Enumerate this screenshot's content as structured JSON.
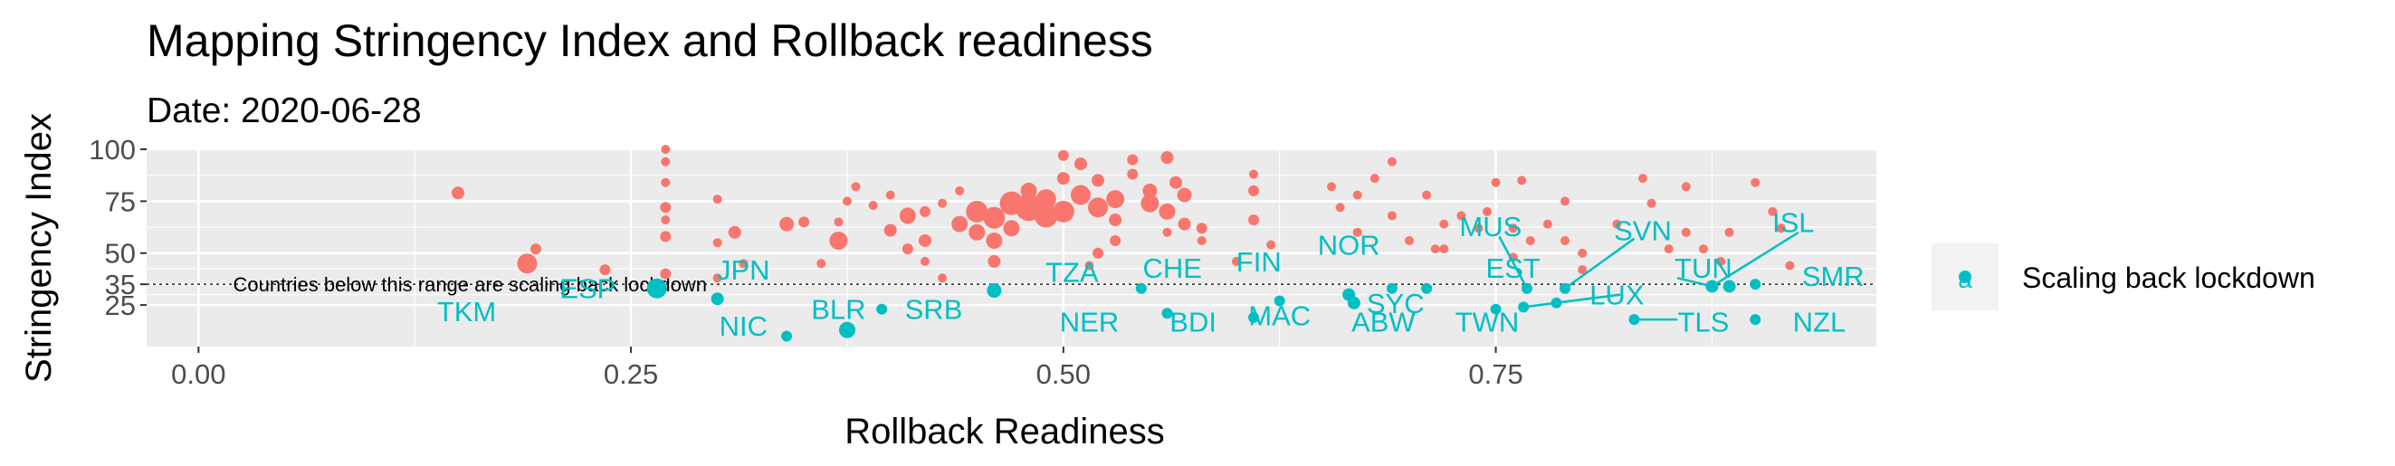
{
  "chart_data": {
    "type": "scatter",
    "title": "Mapping Stringency Index and Rollback readiness",
    "subtitle": "Date: 2020-06-28",
    "xlabel": "Rollback Readiness",
    "ylabel": "Stringency Index",
    "xlim": [
      -0.03,
      0.97
    ],
    "ylim": [
      5,
      100
    ],
    "x_ticks": [
      "0.00",
      "0.25",
      "0.50",
      "0.75"
    ],
    "y_ticks": [
      "25",
      "35",
      "50",
      "75",
      "100"
    ],
    "threshold": {
      "y": 35,
      "label": "Countries below this range are scaling back lockdown"
    },
    "grid": true,
    "legend_position": "right",
    "colors": {
      "above": "#F8766D",
      "below": "#00BFC4",
      "panel": "#EBEBEB",
      "grid": "#FFFFFF"
    },
    "series": [
      {
        "name": "",
        "color": "#F8766D",
        "points": [
          {
            "x": 0.15,
            "y": 79,
            "s": 7
          },
          {
            "x": 0.19,
            "y": 45,
            "s": 11
          },
          {
            "x": 0.195,
            "y": 52,
            "s": 6
          },
          {
            "x": 0.235,
            "y": 42,
            "s": 6
          },
          {
            "x": 0.27,
            "y": 40,
            "s": 6
          },
          {
            "x": 0.27,
            "y": 58,
            "s": 6
          },
          {
            "x": 0.27,
            "y": 72,
            "s": 6
          },
          {
            "x": 0.27,
            "y": 100,
            "s": 5
          },
          {
            "x": 0.27,
            "y": 94,
            "s": 5
          },
          {
            "x": 0.27,
            "y": 84,
            "s": 5
          },
          {
            "x": 0.27,
            "y": 66,
            "s": 5
          },
          {
            "x": 0.31,
            "y": 60,
            "s": 7
          },
          {
            "x": 0.3,
            "y": 76,
            "s": 5
          },
          {
            "x": 0.315,
            "y": 45,
            "s": 5
          },
          {
            "x": 0.3,
            "y": 55,
            "s": 5
          },
          {
            "x": 0.3,
            "y": 38,
            "s": 5
          },
          {
            "x": 0.34,
            "y": 64,
            "s": 8
          },
          {
            "x": 0.35,
            "y": 65,
            "s": 6
          },
          {
            "x": 0.36,
            "y": 45,
            "s": 5
          },
          {
            "x": 0.37,
            "y": 56,
            "s": 10
          },
          {
            "x": 0.37,
            "y": 65,
            "s": 5
          },
          {
            "x": 0.375,
            "y": 75,
            "s": 5
          },
          {
            "x": 0.38,
            "y": 82,
            "s": 5
          },
          {
            "x": 0.39,
            "y": 73,
            "s": 5
          },
          {
            "x": 0.4,
            "y": 78,
            "s": 5
          },
          {
            "x": 0.41,
            "y": 68,
            "s": 9
          },
          {
            "x": 0.4,
            "y": 61,
            "s": 7
          },
          {
            "x": 0.41,
            "y": 52,
            "s": 6
          },
          {
            "x": 0.42,
            "y": 56,
            "s": 7
          },
          {
            "x": 0.42,
            "y": 46,
            "s": 5
          },
          {
            "x": 0.43,
            "y": 38,
            "s": 5
          },
          {
            "x": 0.42,
            "y": 70,
            "s": 6
          },
          {
            "x": 0.43,
            "y": 74,
            "s": 5
          },
          {
            "x": 0.44,
            "y": 80,
            "s": 5
          },
          {
            "x": 0.44,
            "y": 64,
            "s": 9
          },
          {
            "x": 0.45,
            "y": 60,
            "s": 9
          },
          {
            "x": 0.45,
            "y": 70,
            "s": 12
          },
          {
            "x": 0.46,
            "y": 67,
            "s": 12
          },
          {
            "x": 0.46,
            "y": 56,
            "s": 9
          },
          {
            "x": 0.46,
            "y": 46,
            "s": 7
          },
          {
            "x": 0.47,
            "y": 74,
            "s": 13
          },
          {
            "x": 0.47,
            "y": 62,
            "s": 9
          },
          {
            "x": 0.48,
            "y": 72,
            "s": 15
          },
          {
            "x": 0.48,
            "y": 80,
            "s": 9
          },
          {
            "x": 0.49,
            "y": 68,
            "s": 13
          },
          {
            "x": 0.49,
            "y": 76,
            "s": 11
          },
          {
            "x": 0.5,
            "y": 70,
            "s": 12
          },
          {
            "x": 0.5,
            "y": 86,
            "s": 7
          },
          {
            "x": 0.51,
            "y": 78,
            "s": 11
          },
          {
            "x": 0.51,
            "y": 93,
            "s": 7
          },
          {
            "x": 0.52,
            "y": 72,
            "s": 11
          },
          {
            "x": 0.52,
            "y": 85,
            "s": 7
          },
          {
            "x": 0.5,
            "y": 97,
            "s": 6
          },
          {
            "x": 0.53,
            "y": 76,
            "s": 10
          },
          {
            "x": 0.53,
            "y": 66,
            "s": 7
          },
          {
            "x": 0.53,
            "y": 56,
            "s": 6
          },
          {
            "x": 0.52,
            "y": 50,
            "s": 6
          },
          {
            "x": 0.515,
            "y": 44,
            "s": 5
          },
          {
            "x": 0.54,
            "y": 88,
            "s": 6
          },
          {
            "x": 0.54,
            "y": 95,
            "s": 6
          },
          {
            "x": 0.55,
            "y": 74,
            "s": 10
          },
          {
            "x": 0.55,
            "y": 80,
            "s": 8
          },
          {
            "x": 0.56,
            "y": 70,
            "s": 9
          },
          {
            "x": 0.56,
            "y": 96,
            "s": 7
          },
          {
            "x": 0.565,
            "y": 84,
            "s": 7
          },
          {
            "x": 0.57,
            "y": 78,
            "s": 8
          },
          {
            "x": 0.57,
            "y": 64,
            "s": 7
          },
          {
            "x": 0.58,
            "y": 62,
            "s": 6
          },
          {
            "x": 0.58,
            "y": 56,
            "s": 5
          },
          {
            "x": 0.56,
            "y": 60,
            "s": 5
          },
          {
            "x": 0.61,
            "y": 80,
            "s": 6
          },
          {
            "x": 0.61,
            "y": 88,
            "s": 5
          },
          {
            "x": 0.61,
            "y": 66,
            "s": 6
          },
          {
            "x": 0.62,
            "y": 54,
            "s": 5
          },
          {
            "x": 0.6,
            "y": 46,
            "s": 5
          },
          {
            "x": 0.655,
            "y": 82,
            "s": 5
          },
          {
            "x": 0.66,
            "y": 72,
            "s": 5
          },
          {
            "x": 0.67,
            "y": 78,
            "s": 5
          },
          {
            "x": 0.67,
            "y": 60,
            "s": 5
          },
          {
            "x": 0.68,
            "y": 86,
            "s": 5
          },
          {
            "x": 0.69,
            "y": 94,
            "s": 5
          },
          {
            "x": 0.69,
            "y": 68,
            "s": 5
          },
          {
            "x": 0.7,
            "y": 56,
            "s": 5
          },
          {
            "x": 0.71,
            "y": 78,
            "s": 5
          },
          {
            "x": 0.715,
            "y": 52,
            "s": 5
          },
          {
            "x": 0.72,
            "y": 64,
            "s": 5
          },
          {
            "x": 0.72,
            "y": 52,
            "s": 5
          },
          {
            "x": 0.73,
            "y": 68,
            "s": 5
          },
          {
            "x": 0.74,
            "y": 62,
            "s": 5
          },
          {
            "x": 0.745,
            "y": 70,
            "s": 5
          },
          {
            "x": 0.75,
            "y": 84,
            "s": 5
          },
          {
            "x": 0.76,
            "y": 48,
            "s": 5
          },
          {
            "x": 0.76,
            "y": 62,
            "s": 5
          },
          {
            "x": 0.765,
            "y": 85,
            "s": 5
          },
          {
            "x": 0.77,
            "y": 56,
            "s": 5
          },
          {
            "x": 0.78,
            "y": 64,
            "s": 5
          },
          {
            "x": 0.79,
            "y": 56,
            "s": 5
          },
          {
            "x": 0.79,
            "y": 75,
            "s": 5
          },
          {
            "x": 0.8,
            "y": 50,
            "s": 5
          },
          {
            "x": 0.8,
            "y": 42,
            "s": 5
          },
          {
            "x": 0.82,
            "y": 64,
            "s": 5
          },
          {
            "x": 0.835,
            "y": 86,
            "s": 5
          },
          {
            "x": 0.84,
            "y": 74,
            "s": 5
          },
          {
            "x": 0.85,
            "y": 52,
            "s": 5
          },
          {
            "x": 0.86,
            "y": 60,
            "s": 5
          },
          {
            "x": 0.86,
            "y": 82,
            "s": 5
          },
          {
            "x": 0.87,
            "y": 52,
            "s": 5
          },
          {
            "x": 0.88,
            "y": 46,
            "s": 5
          },
          {
            "x": 0.885,
            "y": 60,
            "s": 5
          },
          {
            "x": 0.9,
            "y": 84,
            "s": 5
          },
          {
            "x": 0.91,
            "y": 70,
            "s": 5
          },
          {
            "x": 0.915,
            "y": 62,
            "s": 5
          },
          {
            "x": 0.92,
            "y": 44,
            "s": 5
          }
        ]
      },
      {
        "name": "Scaling back lockdown",
        "color": "#00BFC4",
        "points": [
          {
            "x": 0.265,
            "y": 33,
            "s": 11,
            "label": "ESP"
          },
          {
            "x": 0.3,
            "y": 28,
            "s": 7,
            "label": "JPN"
          },
          {
            "x": 0.34,
            "y": 10,
            "s": 6,
            "label": "NIC"
          },
          {
            "x": 0.375,
            "y": 13,
            "s": 9,
            "label": "BLR"
          },
          {
            "x": 0.395,
            "y": 23,
            "s": 6,
            "label": "SRB"
          },
          {
            "x": 0.46,
            "y": 32,
            "s": 8,
            "label": "TZA"
          },
          {
            "x": 0.545,
            "y": 33,
            "s": 6,
            "label": "CHE"
          },
          {
            "x": 0.56,
            "y": 21,
            "s": 6,
            "label": "BDI"
          },
          {
            "x": 0.61,
            "y": 19,
            "s": 6,
            "label": "MAC"
          },
          {
            "x": 0.625,
            "y": 27,
            "s": 6,
            "label": "FIN"
          },
          {
            "x": 0.665,
            "y": 30,
            "s": 7,
            "label": "NOR"
          },
          {
            "x": 0.668,
            "y": 26,
            "s": 7,
            "label": "ABW"
          },
          {
            "x": 0.69,
            "y": 33,
            "s": 6,
            "label": "SYC"
          },
          {
            "x": 0.71,
            "y": 33,
            "s": 6,
            "label": "TWN"
          },
          {
            "x": 0.75,
            "y": 23,
            "s": 6
          },
          {
            "x": 0.766,
            "y": 24,
            "s": 6,
            "label": "EST"
          },
          {
            "x": 0.768,
            "y": 33,
            "s": 6,
            "label": "MUS"
          },
          {
            "x": 0.785,
            "y": 26,
            "s": 6,
            "label": "LUX"
          },
          {
            "x": 0.79,
            "y": 33,
            "s": 6,
            "label": "SVN"
          },
          {
            "x": 0.83,
            "y": 18,
            "s": 6,
            "label": "TLS"
          },
          {
            "x": 0.875,
            "y": 34,
            "s": 7,
            "label": "TUN"
          },
          {
            "x": 0.885,
            "y": 34,
            "s": 7,
            "label": "ISL"
          },
          {
            "x": 0.9,
            "y": 18,
            "s": 6,
            "label": "NZL"
          },
          {
            "x": 0.9,
            "y": 35,
            "s": 6,
            "label": "SMR"
          }
        ]
      }
    ],
    "point_labels": [
      {
        "text": "TKM",
        "x": 0.155,
        "y": 22
      },
      {
        "text": "ESP",
        "x": 0.225,
        "y": 33
      },
      {
        "text": "JPN",
        "x": 0.315,
        "y": 42
      },
      {
        "text": "NIC",
        "x": 0.315,
        "y": 15
      },
      {
        "text": "BLR",
        "x": 0.37,
        "y": 23
      },
      {
        "text": "SRB",
        "x": 0.425,
        "y": 23
      },
      {
        "text": "TZA",
        "x": 0.505,
        "y": 41
      },
      {
        "text": "CHE",
        "x": 0.563,
        "y": 43
      },
      {
        "text": "NER",
        "x": 0.515,
        "y": 17
      },
      {
        "text": "BDI",
        "x": 0.575,
        "y": 17
      },
      {
        "text": "MAC",
        "x": 0.625,
        "y": 20
      },
      {
        "text": "FIN",
        "x": 0.613,
        "y": 46
      },
      {
        "text": "NOR",
        "x": 0.665,
        "y": 54
      },
      {
        "text": "ABW",
        "x": 0.685,
        "y": 17
      },
      {
        "text": "SYC",
        "x": 0.692,
        "y": 26
      },
      {
        "text": "TWN",
        "x": 0.745,
        "y": 17
      },
      {
        "text": "EST",
        "x": 0.76,
        "y": 43
      },
      {
        "text": "MUS",
        "x": 0.747,
        "y": 63
      },
      {
        "text": "LUX",
        "x": 0.82,
        "y": 30
      },
      {
        "text": "SVN",
        "x": 0.835,
        "y": 61
      },
      {
        "text": "TUN",
        "x": 0.87,
        "y": 43
      },
      {
        "text": "TLS",
        "x": 0.87,
        "y": 17
      },
      {
        "text": "ISL",
        "x": 0.922,
        "y": 65
      },
      {
        "text": "NZL",
        "x": 0.937,
        "y": 17
      },
      {
        "text": "SMR",
        "x": 0.945,
        "y": 39
      }
    ],
    "leader_lines": [
      {
        "from": [
          0.768,
          33
        ],
        "to": [
          0.752,
          58
        ]
      },
      {
        "from": [
          0.79,
          33
        ],
        "to": [
          0.83,
          57
        ]
      },
      {
        "from": [
          0.766,
          24
        ],
        "to": [
          0.822,
          30
        ]
      },
      {
        "from": [
          0.875,
          34
        ],
        "to": [
          0.925,
          60
        ]
      },
      {
        "from": [
          0.875,
          34
        ],
        "to": [
          0.855,
          38
        ]
      },
      {
        "from": [
          0.83,
          18
        ],
        "to": [
          0.855,
          18
        ]
      }
    ],
    "legend": {
      "entries": [
        {
          "label": "Scaling back lockdown",
          "color": "#00BFC4",
          "key_glyph": "a"
        }
      ]
    }
  }
}
